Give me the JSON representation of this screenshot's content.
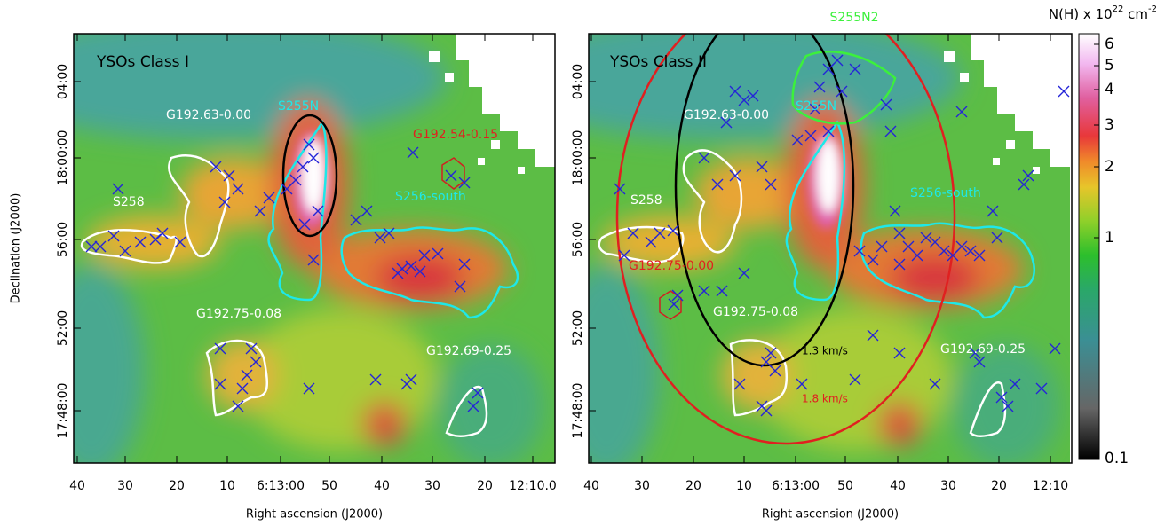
{
  "panels": [
    {
      "title": "YSOs Class I",
      "labels": [
        "G192.63-0.00",
        "S255N",
        "G192.54-0.15",
        "S258",
        "S256-south",
        "G192.75-0.08",
        "G192.69-0.25"
      ],
      "xticks": [
        "40",
        "30",
        "20",
        "10",
        "6:13:00",
        "50",
        "40",
        "30",
        "20",
        "12:10.0"
      ],
      "yticks": [
        "04:00",
        "18:00:00",
        "56:00",
        "52:00",
        "17:48:00"
      ],
      "xlabel": "Right ascension (J2000)",
      "ylabel": "Declination (J2000)"
    },
    {
      "title": "YSOs Class II",
      "labels": [
        "S255N2",
        "G192.63-0.00",
        "S255N",
        "S258",
        "S256-south",
        "G192.75-0.00",
        "G192.75-0.08",
        "1.3 km/s",
        "1.8 km/s",
        "G192.69-0.25"
      ],
      "xticks": [
        "40",
        "30",
        "20",
        "10",
        "6:13:00",
        "50",
        "40",
        "30",
        "20",
        "12:10"
      ],
      "yticks": [
        "04:00",
        "18:00:00",
        "56:00",
        "52:00",
        "17:48:00"
      ],
      "xlabel": "Right ascension (J2000)"
    }
  ],
  "colorbar": {
    "title": [
      "N(H) x 10",
      "22",
      " cm",
      "-2"
    ],
    "ticks": [
      "6",
      "5",
      "4",
      "3",
      "2",
      "1",
      "0.1"
    ]
  }
}
